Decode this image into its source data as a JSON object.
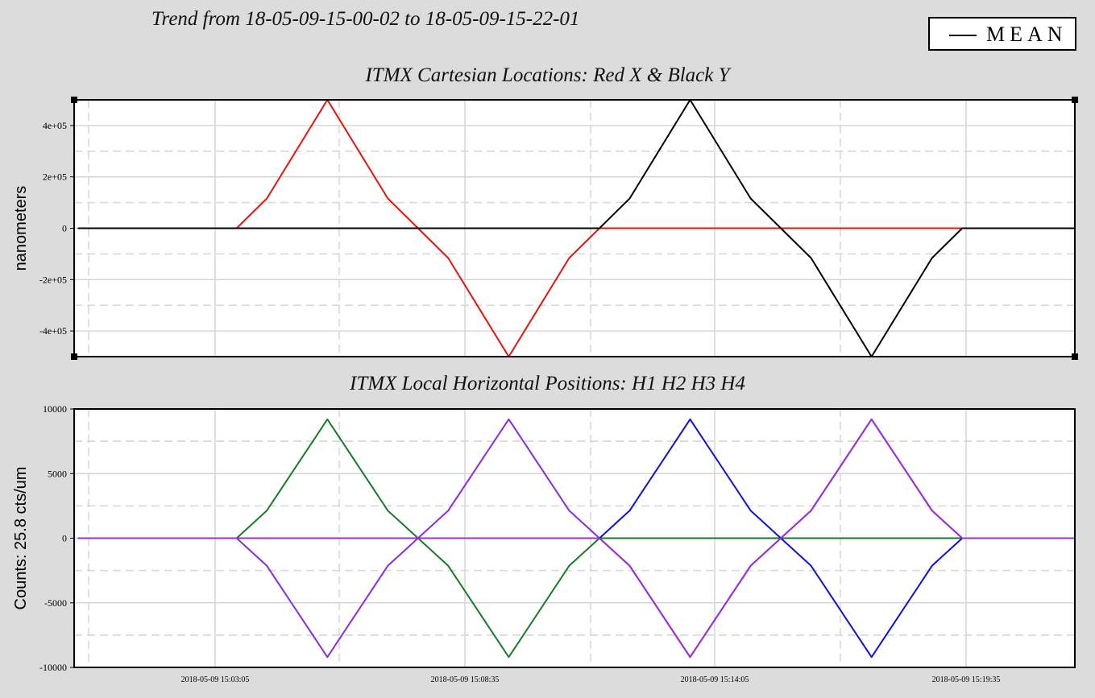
{
  "header": {
    "trend_title": "Trend from 18-05-09-15-00-02 to 18-05-09-15-22-01"
  },
  "legend": {
    "label": "MEAN"
  },
  "chart_data": [
    {
      "type": "line",
      "title": "ITMX Cartesian Locations: Red X & Black Y",
      "ylabel": "nanometers",
      "ylim": [
        -500000,
        500000
      ],
      "ytick_labels": [
        "4e+05",
        "2e+05",
        "0",
        "-2e+05",
        "-4e+05"
      ],
      "yticks": [
        400000,
        200000,
        0,
        -200000,
        -400000
      ],
      "xlim": [
        -5,
        1319
      ],
      "series": [
        {
          "color": "#e8120c",
          "points": [
            [
              0,
              0
            ],
            [
              210,
              0
            ],
            [
              250,
              116000
            ],
            [
              330,
              500000
            ],
            [
              410,
              116000
            ],
            [
              450,
              0
            ],
            [
              490,
              -116000
            ],
            [
              570,
              -500000
            ],
            [
              650,
              -116000
            ],
            [
              690,
              0
            ],
            [
              1319,
              0
            ]
          ]
        },
        {
          "color": "#000000",
          "points": [
            [
              0,
              0
            ],
            [
              690,
              0
            ],
            [
              730,
              116000
            ],
            [
              810,
              500000
            ],
            [
              890,
              116000
            ],
            [
              930,
              0
            ],
            [
              970,
              -116000
            ],
            [
              1050,
              -500000
            ],
            [
              1130,
              -116000
            ],
            [
              1170,
              0
            ],
            [
              1319,
              0
            ]
          ]
        }
      ]
    },
    {
      "type": "line",
      "title": "ITMX Local Horizontal Positions: H1 H2 H3 H4",
      "ylabel": "Counts: 25.8 cts/um",
      "ylim": [
        -10000,
        10000
      ],
      "ytick_labels": [
        "10000",
        "5000",
        "0",
        "-5000",
        "-10000"
      ],
      "yticks": [
        10000,
        5000,
        0,
        -5000,
        -10000
      ],
      "xlim": [
        -5,
        1319
      ],
      "xtick_labels": [
        "2018-05-09 15:03:05",
        "2018-05-09 15:08:35",
        "2018-05-09 15:14:05",
        "2018-05-09 15:19:35"
      ],
      "xticks": [
        170,
        500,
        830,
        1160
      ],
      "series": [
        {
          "color": "#1a7a2a",
          "points": [
            [
              0,
              0
            ],
            [
              210,
              0
            ],
            [
              250,
              2140
            ],
            [
              330,
              9200
            ],
            [
              410,
              2140
            ],
            [
              450,
              0
            ],
            [
              490,
              -2140
            ],
            [
              570,
              -9200
            ],
            [
              650,
              -2140
            ],
            [
              690,
              0
            ],
            [
              1319,
              0
            ]
          ]
        },
        {
          "color": "#8a2be2",
          "points": [
            [
              0,
              0
            ],
            [
              210,
              0
            ],
            [
              250,
              -2140
            ],
            [
              330,
              -9200
            ],
            [
              410,
              -2140
            ],
            [
              450,
              0
            ],
            [
              490,
              2140
            ],
            [
              570,
              9200
            ],
            [
              650,
              2140
            ],
            [
              690,
              0
            ],
            [
              730,
              -2140
            ],
            [
              810,
              -9200
            ],
            [
              890,
              -2140
            ],
            [
              930,
              0
            ],
            [
              970,
              2140
            ],
            [
              1050,
              9200
            ],
            [
              1130,
              2140
            ],
            [
              1170,
              0
            ],
            [
              1319,
              0
            ]
          ]
        },
        {
          "color": "#1010e0",
          "points": [
            [
              0,
              0
            ],
            [
              690,
              0
            ],
            [
              730,
              2140
            ],
            [
              810,
              9200
            ],
            [
              890,
              2140
            ],
            [
              930,
              0
            ],
            [
              970,
              -2140
            ],
            [
              1050,
              -9200
            ],
            [
              1130,
              -2140
            ],
            [
              1170,
              0
            ],
            [
              1319,
              0
            ]
          ]
        },
        {
          "color": "#9a30d8",
          "points": [
            [
              0,
              0
            ],
            [
              690,
              0
            ],
            [
              730,
              -2140
            ],
            [
              810,
              -9200
            ],
            [
              890,
              -2140
            ],
            [
              930,
              0
            ],
            [
              970,
              2140
            ],
            [
              1050,
              9200
            ],
            [
              1130,
              2140
            ],
            [
              1170,
              0
            ],
            [
              1319,
              0
            ]
          ]
        }
      ]
    }
  ]
}
